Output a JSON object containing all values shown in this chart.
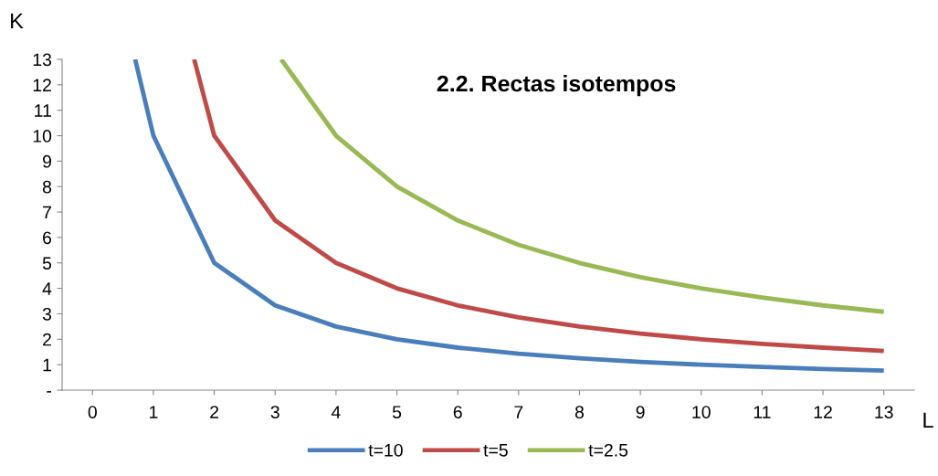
{
  "chart_data": {
    "type": "line",
    "title": "2.2. Rectas isotempos",
    "xlabel": "L",
    "ylabel": "K",
    "xlim": [
      -0.5,
      13.5
    ],
    "xticks": [
      0,
      1,
      2,
      3,
      4,
      5,
      6,
      7,
      8,
      9,
      10,
      11,
      12,
      13
    ],
    "series": [
      {
        "name": "t=10",
        "color": "#4a7ebb",
        "x": [
          0.7,
          1,
          2,
          3,
          4,
          5,
          6,
          7,
          8,
          9,
          10,
          11,
          12,
          13
        ],
        "values": [
          13,
          10,
          5,
          3.33,
          2.5,
          2,
          1.67,
          1.43,
          1.25,
          1.11,
          1,
          0.91,
          0.83,
          0.77
        ]
      },
      {
        "name": "t=5",
        "color": "#be4b48",
        "x": [
          1.67,
          2,
          3,
          4,
          5,
          6,
          7,
          8,
          9,
          10,
          11,
          12,
          13
        ],
        "values": [
          13,
          10,
          6.67,
          5,
          4,
          3.33,
          2.86,
          2.5,
          2.22,
          2,
          1.82,
          1.67,
          1.54
        ]
      },
      {
        "name": "t=2.5",
        "color": "#98b954",
        "x": [
          3.1,
          4,
          5,
          6,
          7,
          8,
          9,
          10,
          11,
          12,
          13
        ],
        "values": [
          13,
          10,
          8,
          6.67,
          5.71,
          5,
          4.44,
          4,
          3.64,
          3.33,
          3.08
        ]
      }
    ],
    "ylim": [
      0,
      13
    ],
    "yticks": [
      {
        "value": 0,
        "label": "-"
      },
      1,
      2,
      3,
      4,
      5,
      6,
      7,
      8,
      9,
      10,
      11,
      12,
      13
    ],
    "grid": false,
    "legend": "bottom",
    "marker": "none",
    "line_style": "solid"
  }
}
